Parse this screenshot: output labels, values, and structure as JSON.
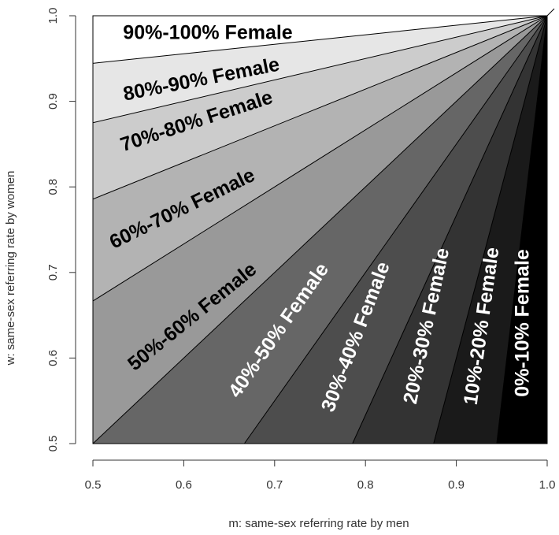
{
  "chart_data": {
    "type": "area",
    "xlabel": "m: same-sex referring rate by men",
    "ylabel": "w: same-sex referring rate by women",
    "xlim": [
      0.5,
      1.0
    ],
    "ylim": [
      0.5,
      1.0
    ],
    "x_ticks": [
      "0.5",
      "0.6",
      "0.7",
      "0.8",
      "0.9",
      "1.0"
    ],
    "y_ticks": [
      "0.5",
      "0.6",
      "0.7",
      "0.8",
      "0.9",
      "1.0"
    ],
    "region_fills": [
      "#000000",
      "#1a1a1a",
      "#333333",
      "#4d4d4d",
      "#666666",
      "#999999",
      "#b3b3b3",
      "#cccccc",
      "#e6e6e6",
      "#ffffff"
    ],
    "regions": [
      {
        "label": "0%-10% Female",
        "female_share_range": [
          0,
          0.1
        ],
        "label_color": "#ffffff"
      },
      {
        "label": "10%-20% Female",
        "female_share_range": [
          0.1,
          0.2
        ],
        "label_color": "#ffffff"
      },
      {
        "label": "20%-30% Female",
        "female_share_range": [
          0.2,
          0.3
        ],
        "label_color": "#ffffff"
      },
      {
        "label": "30%-40% Female",
        "female_share_range": [
          0.3,
          0.4
        ],
        "label_color": "#ffffff"
      },
      {
        "label": "40%-50% Female",
        "female_share_range": [
          0.4,
          0.5
        ],
        "label_color": "#ffffff"
      },
      {
        "label": "50%-60% Female",
        "female_share_range": [
          0.5,
          0.6
        ],
        "label_color": "#000000"
      },
      {
        "label": "60%-70% Female",
        "female_share_range": [
          0.6,
          0.7
        ],
        "label_color": "#000000"
      },
      {
        "label": "70%-80% Female",
        "female_share_range": [
          0.7,
          0.8
        ],
        "label_color": "#000000"
      },
      {
        "label": "80%-90% Female",
        "female_share_range": [
          0.8,
          0.9
        ],
        "label_color": "#000000"
      },
      {
        "label": "90%-100% Female",
        "female_share_range": [
          0.9,
          1.0
        ],
        "label_color": "#000000"
      }
    ]
  }
}
